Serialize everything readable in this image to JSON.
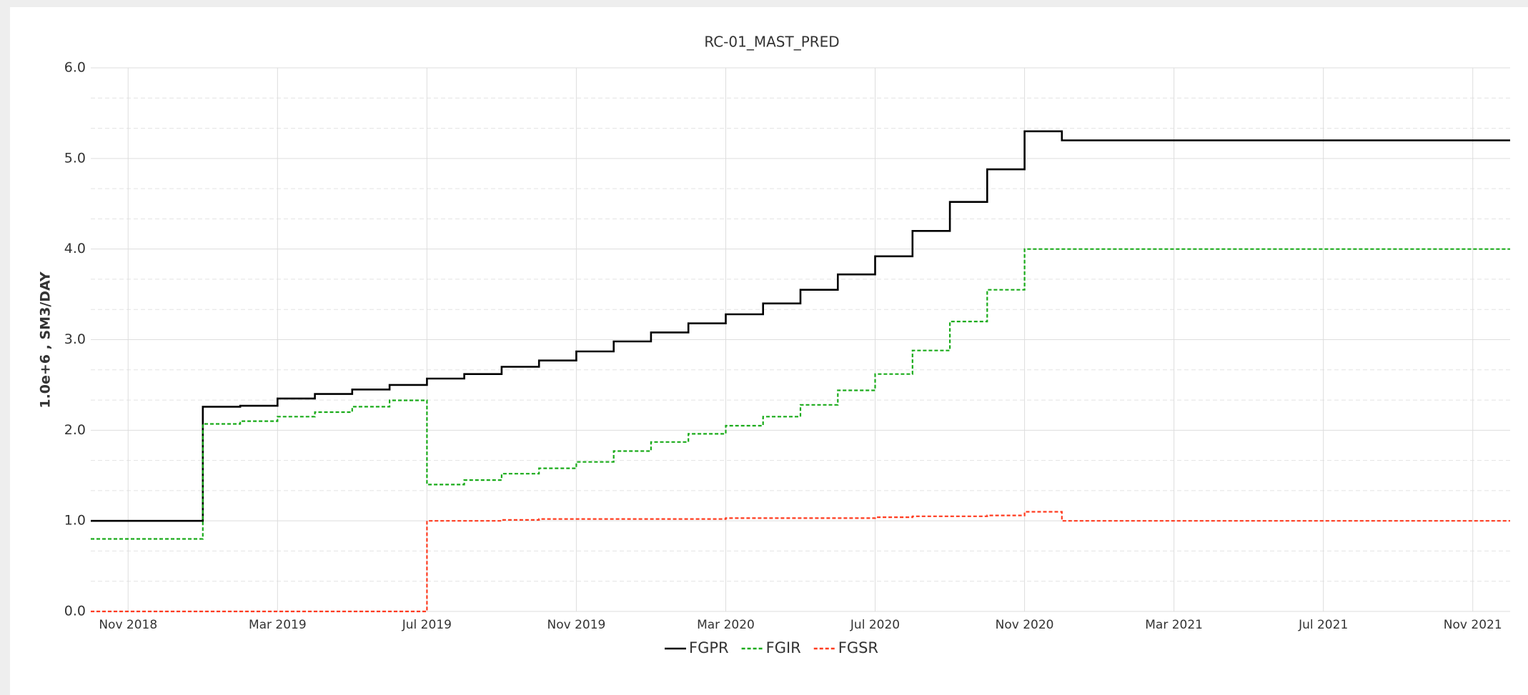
{
  "chart_data": {
    "type": "line",
    "title": "RC-01_MAST_PRED",
    "ylabel": "1.0e+6 , SM3/DAY",
    "x": [
      "2018-10",
      "2018-11",
      "2018-12",
      "2019-01",
      "2019-02",
      "2019-03",
      "2019-04",
      "2019-05",
      "2019-06",
      "2019-07",
      "2019-08",
      "2019-09",
      "2019-10",
      "2019-11",
      "2019-12",
      "2020-01",
      "2020-02",
      "2020-03",
      "2020-04",
      "2020-05",
      "2020-06",
      "2020-07",
      "2020-08",
      "2020-09",
      "2020-10",
      "2020-11",
      "2020-12",
      "2021-01",
      "2021-02",
      "2021-03",
      "2021-04",
      "2021-05",
      "2021-06",
      "2021-07",
      "2021-08",
      "2021-09",
      "2021-10",
      "2021-11",
      "2021-12"
    ],
    "series": [
      {
        "name": "FGPR",
        "color": "#000000",
        "linestyle": "solid",
        "values": [
          1.0,
          1.0,
          1.0,
          2.26,
          2.27,
          2.35,
          2.4,
          2.45,
          2.5,
          2.57,
          2.62,
          2.7,
          2.77,
          2.87,
          2.98,
          3.08,
          3.18,
          3.28,
          3.4,
          3.55,
          3.72,
          3.92,
          4.2,
          4.52,
          4.88,
          5.3,
          5.2,
          5.2,
          5.2,
          5.2,
          5.2,
          5.2,
          5.2,
          5.2,
          5.2,
          5.2,
          5.2,
          5.2,
          5.2
        ]
      },
      {
        "name": "FGIR",
        "color": "#1aab1a",
        "linestyle": "dashed",
        "values": [
          0.8,
          0.8,
          0.8,
          2.07,
          2.1,
          2.15,
          2.2,
          2.26,
          2.33,
          1.4,
          1.45,
          1.52,
          1.58,
          1.65,
          1.77,
          1.87,
          1.96,
          2.05,
          2.15,
          2.28,
          2.44,
          2.62,
          2.88,
          3.2,
          3.55,
          4.0,
          4.0,
          4.0,
          4.0,
          4.0,
          4.0,
          4.0,
          4.0,
          4.0,
          4.0,
          4.0,
          4.0,
          4.0,
          4.0
        ]
      },
      {
        "name": "FGSR",
        "color": "#ff3b1f",
        "linestyle": "dashed",
        "values": [
          0,
          0,
          0,
          0,
          0,
          0,
          0,
          0,
          0,
          1.0,
          1.0,
          1.01,
          1.02,
          1.02,
          1.02,
          1.02,
          1.02,
          1.03,
          1.03,
          1.03,
          1.03,
          1.04,
          1.05,
          1.05,
          1.06,
          1.1,
          1.0,
          1.0,
          1.0,
          1.0,
          1.0,
          1.0,
          1.0,
          1.0,
          1.0,
          1.0,
          1.0,
          1.0,
          1.0
        ]
      }
    ],
    "xlim": [
      "2018-10",
      "2021-12"
    ],
    "xticks": [
      {
        "value": "2018-11",
        "label": "Nov 2018"
      },
      {
        "value": "2019-03",
        "label": "Mar 2019"
      },
      {
        "value": "2019-07",
        "label": "Jul 2019"
      },
      {
        "value": "2019-11",
        "label": "Nov 2019"
      },
      {
        "value": "2020-03",
        "label": "Mar 2020"
      },
      {
        "value": "2020-07",
        "label": "Jul 2020"
      },
      {
        "value": "2020-11",
        "label": "Nov 2020"
      },
      {
        "value": "2021-03",
        "label": "Mar 2021"
      },
      {
        "value": "2021-07",
        "label": "Jul 2021"
      },
      {
        "value": "2021-11",
        "label": "Nov 2021"
      }
    ],
    "ylim": [
      0,
      6
    ],
    "yticks": [
      {
        "value": 0,
        "label": "0.0"
      },
      {
        "value": 1,
        "label": "1.0"
      },
      {
        "value": 2,
        "label": "2.0"
      },
      {
        "value": 3,
        "label": "3.0"
      },
      {
        "value": 4,
        "label": "4.0"
      },
      {
        "value": 5,
        "label": "5.0"
      },
      {
        "value": 6,
        "label": "6.0"
      }
    ],
    "yminorticks": [
      0.333,
      0.667,
      1.333,
      1.667,
      2.333,
      2.667,
      3.333,
      3.667,
      4.333,
      4.667,
      5.333,
      5.667
    ],
    "grid": true,
    "legend": "bottom"
  }
}
